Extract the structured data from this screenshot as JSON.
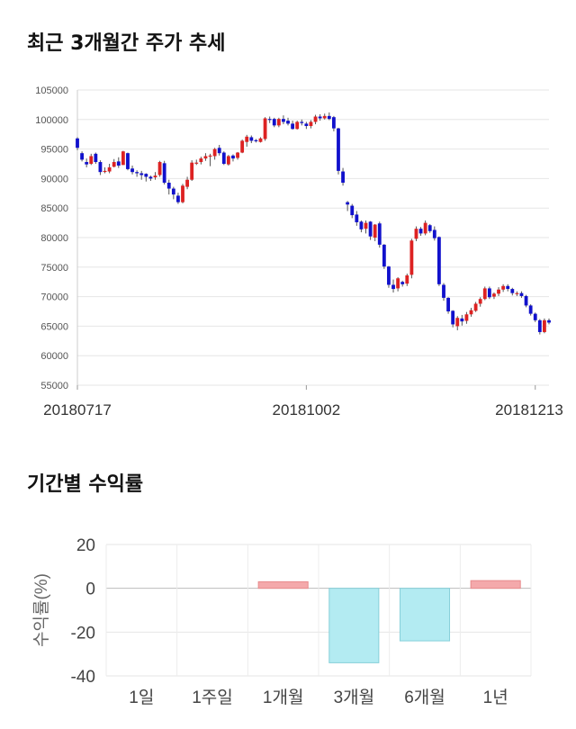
{
  "titles": {
    "price_trend": "최근 3개월간 주가 추세",
    "returns": "기간별 수익률"
  },
  "chart_data": [
    {
      "type": "candlestick",
      "y_ticks": [
        55000,
        60000,
        65000,
        70000,
        75000,
        80000,
        85000,
        90000,
        95000,
        100000,
        105000
      ],
      "ylim": [
        55000,
        105000
      ],
      "x_tick_labels": [
        {
          "index": 0,
          "label": "20180717"
        },
        {
          "index": 50,
          "label": "20181002"
        },
        {
          "index": 100,
          "label": "20181213"
        }
      ],
      "up_color": "#dd2222",
      "down_color": "#1111cc",
      "candles": [
        [
          96800,
          95200,
          97000,
          94800
        ],
        [
          94300,
          93200,
          94600,
          92900
        ],
        [
          92800,
          92400,
          93400,
          91900
        ],
        [
          92500,
          93800,
          94200,
          92300
        ],
        [
          94200,
          92800,
          94400,
          92500
        ],
        [
          92800,
          91100,
          93100,
          90600
        ],
        [
          91300,
          91300,
          91900,
          90900
        ],
        [
          91200,
          91900,
          92500,
          90900
        ],
        [
          92000,
          92800,
          93300,
          91900
        ],
        [
          92900,
          92200,
          93600,
          91800
        ],
        [
          92300,
          94600,
          94700,
          92300
        ],
        [
          94300,
          91600,
          94400,
          91400
        ],
        [
          91700,
          91100,
          92200,
          90700
        ],
        [
          91100,
          90900,
          91400,
          90300
        ],
        [
          90900,
          90600,
          91300,
          89800
        ],
        [
          90800,
          90300,
          90900,
          89500
        ],
        [
          90300,
          90000,
          90500,
          89600
        ],
        [
          90200,
          90500,
          91100,
          89800
        ],
        [
          90600,
          92800,
          93000,
          90300
        ],
        [
          92600,
          89300,
          93000,
          89000
        ],
        [
          89300,
          88300,
          89800,
          87300
        ],
        [
          88300,
          87300,
          88600,
          86500
        ],
        [
          87100,
          86000,
          87600,
          85700
        ],
        [
          86000,
          88800,
          89100,
          85800
        ],
        [
          88600,
          89800,
          90300,
          88200
        ],
        [
          89800,
          92700,
          93100,
          89600
        ],
        [
          92700,
          92700,
          93200,
          92300
        ],
        [
          92800,
          93400,
          93700,
          92400
        ],
        [
          93400,
          93800,
          94300,
          93000
        ],
        [
          93800,
          93900,
          94200,
          92100
        ],
        [
          93800,
          95000,
          95200,
          93200
        ],
        [
          95200,
          94300,
          95700,
          93900
        ],
        [
          94400,
          92500,
          94600,
          92300
        ],
        [
          92400,
          93800,
          94000,
          92200
        ],
        [
          93900,
          93400,
          94100,
          92900
        ],
        [
          93500,
          94400,
          94500,
          93200
        ],
        [
          94400,
          96400,
          96600,
          94300
        ],
        [
          96200,
          97100,
          97400,
          95400
        ],
        [
          97000,
          96400,
          97300,
          96000
        ],
        [
          96500,
          96400,
          96700,
          96100
        ],
        [
          96200,
          96800,
          97000,
          96100
        ],
        [
          96700,
          100200,
          100400,
          96400
        ],
        [
          100100,
          100000,
          100500,
          99400
        ],
        [
          100100,
          99000,
          100300,
          98700
        ],
        [
          99000,
          100100,
          100300,
          98700
        ],
        [
          100100,
          99600,
          100700,
          99200
        ],
        [
          99800,
          99300,
          100300,
          99000
        ],
        [
          99300,
          98400,
          99800,
          98300
        ],
        [
          98400,
          99600,
          99800,
          98300
        ],
        [
          99600,
          99400,
          100000,
          99000
        ],
        [
          99300,
          98900,
          99600,
          98400
        ],
        [
          98900,
          99600,
          99900,
          98500
        ],
        [
          99600,
          100500,
          100800,
          99200
        ],
        [
          100500,
          100200,
          100900,
          99800
        ],
        [
          100200,
          100600,
          101000,
          100000
        ],
        [
          100600,
          100100,
          101200,
          99900
        ],
        [
          100400,
          98500,
          100600,
          98000
        ],
        [
          98500,
          91300,
          98600,
          90700
        ],
        [
          91200,
          89300,
          91800,
          88800
        ],
        [
          86000,
          85600,
          86200,
          84500
        ],
        [
          85400,
          83800,
          85700,
          83300
        ],
        [
          83900,
          82600,
          84500,
          82000
        ],
        [
          82700,
          81400,
          82900,
          80900
        ],
        [
          81500,
          82500,
          82900,
          80700
        ],
        [
          82700,
          80200,
          82800,
          79600
        ],
        [
          80000,
          82200,
          82300,
          79400
        ],
        [
          82400,
          78800,
          82700,
          78300
        ],
        [
          78800,
          75100,
          78900,
          74700
        ],
        [
          75100,
          72000,
          75200,
          71500
        ],
        [
          72000,
          71300,
          72900,
          70700
        ],
        [
          71400,
          73100,
          73300,
          70900
        ],
        [
          72500,
          72100,
          72700,
          71700
        ],
        [
          72200,
          73600,
          73900,
          71800
        ],
        [
          73700,
          79500,
          79800,
          73100
        ],
        [
          79800,
          81500,
          81900,
          79400
        ],
        [
          81500,
          80700,
          81800,
          80300
        ],
        [
          80700,
          82500,
          82900,
          80400
        ],
        [
          82100,
          81100,
          82300,
          80800
        ],
        [
          81300,
          79900,
          81900,
          79500
        ],
        [
          80100,
          72100,
          80200,
          71800
        ],
        [
          72000,
          69800,
          72300,
          69300
        ],
        [
          69800,
          67500,
          69900,
          67100
        ],
        [
          67600,
          65300,
          67700,
          64800
        ],
        [
          65000,
          66400,
          66700,
          64300
        ],
        [
          66300,
          65800,
          66900,
          65100
        ],
        [
          65900,
          67000,
          67400,
          65400
        ],
        [
          67000,
          67700,
          68100,
          66600
        ],
        [
          67600,
          68800,
          69100,
          67400
        ],
        [
          68800,
          69600,
          69900,
          68300
        ],
        [
          69600,
          71400,
          71700,
          69400
        ],
        [
          71400,
          69900,
          71700,
          69600
        ],
        [
          70000,
          70500,
          70700,
          69600
        ],
        [
          70500,
          71200,
          71600,
          70100
        ],
        [
          71200,
          71800,
          72100,
          70800
        ],
        [
          71800,
          71300,
          72100,
          70900
        ],
        [
          71300,
          70600,
          71500,
          70200
        ],
        [
          70500,
          70600,
          70900,
          70100
        ],
        [
          70600,
          70100,
          70900,
          69800
        ],
        [
          70100,
          68500,
          70300,
          68200
        ],
        [
          68500,
          67100,
          68700,
          66800
        ],
        [
          67100,
          66000,
          67300,
          65700
        ],
        [
          66000,
          64000,
          66200,
          63600
        ],
        [
          64000,
          66000,
          66300,
          63800
        ],
        [
          66000,
          65600,
          66300,
          65300
        ]
      ]
    },
    {
      "type": "bar",
      "categories": [
        "1일",
        "1주일",
        "1개월",
        "3개월",
        "6개월",
        "1년"
      ],
      "values": [
        0,
        0,
        3,
        -34,
        -24,
        3.5
      ],
      "ylabel": "수익률(%)",
      "y_ticks": [
        20,
        0,
        -20,
        -40
      ],
      "ylim": [
        -40,
        20
      ],
      "positive_color": "#f4a9ab",
      "negative_color": "#b3ebf2"
    }
  ]
}
